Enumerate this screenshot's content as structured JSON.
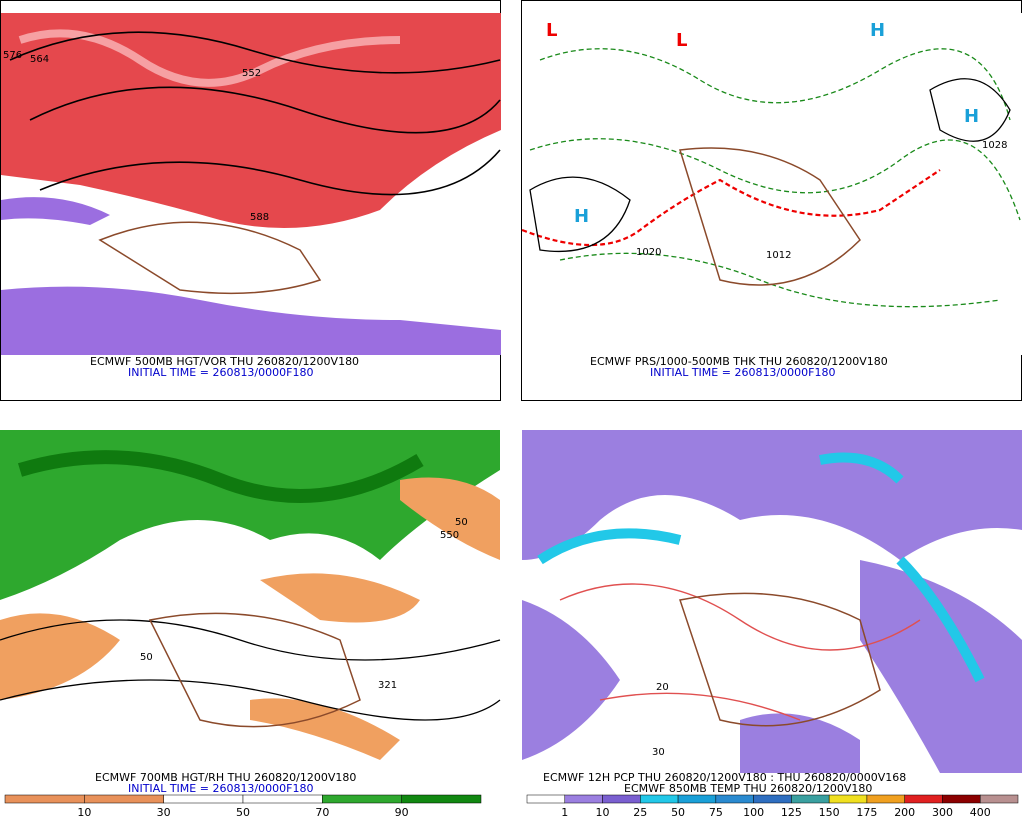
{
  "panels": [
    {
      "title": "ECMWF 500MB HGT/VOR THU 260820/1200V180",
      "subtitle": "INITIAL TIME = 260813/0000F180",
      "labels": [
        "564",
        "552",
        "576",
        "588"
      ]
    },
    {
      "title": "ECMWF PRS/1000-500MB THK THU 260820/1200V180",
      "subtitle": "INITIAL TIME = 260813/0000F180",
      "labels": [
        "H",
        "H",
        "H",
        "L",
        "L",
        "1020",
        "1012",
        "1028"
      ]
    },
    {
      "title": "ECMWF 700MB HGT/RH THU 260820/1200V180",
      "subtitle": "INITIAL TIME = 260813/0000F180",
      "labels": [
        "50",
        "50",
        "550",
        "321"
      ],
      "colorbar": [
        10,
        30,
        50,
        70,
        90
      ]
    },
    {
      "title": "ECMWF 12H PCP THU 260820/1200V180 : THU 260820/0000V168",
      "subtitle": "ECMWF 850MB TEMP THU 260820/1200V180",
      "labels": [
        "20",
        "30"
      ],
      "colorbar": [
        1,
        10,
        25,
        50,
        75,
        100,
        125,
        150,
        175,
        200,
        300,
        400
      ]
    }
  ]
}
